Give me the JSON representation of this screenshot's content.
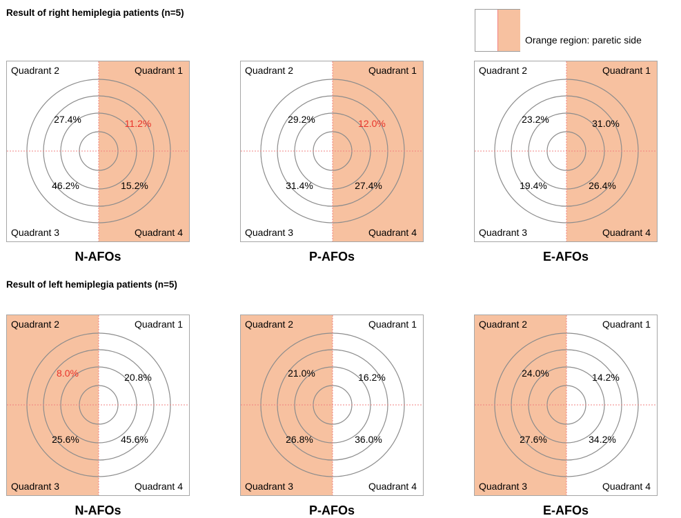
{
  "colors": {
    "paretic": "#f7c1a0",
    "axis_line": "#f08080",
    "circle": "#8c8c8c",
    "highlight_text": "#e8332a",
    "normal_text": "#000000"
  },
  "legend": {
    "text": "Orange region: paretic side"
  },
  "sections": [
    {
      "title": "Result of right hemiplegia patients (n=5)",
      "paretic_side": "right",
      "panels": [
        {
          "name": "N-AFOs",
          "quadrants": {
            "q1": "Quadrant 1",
            "q2": "Quadrant 2",
            "q3": "Quadrant 3",
            "q4": "Quadrant 4"
          },
          "values": {
            "q1": "11.2%",
            "q2": "27.4%",
            "q3": "46.2%",
            "q4": "15.2%"
          },
          "highlight": [
            "q1"
          ]
        },
        {
          "name": "P-AFOs",
          "quadrants": {
            "q1": "Quadrant 1",
            "q2": "Quadrant 2",
            "q3": "Quadrant 3",
            "q4": "Quadrant 4"
          },
          "values": {
            "q1": "12.0%",
            "q2": "29.2%",
            "q3": "31.4%",
            "q4": "27.4%"
          },
          "highlight": [
            "q1"
          ]
        },
        {
          "name": "E-AFOs",
          "quadrants": {
            "q1": "Quadrant 1",
            "q2": "Quadrant 2",
            "q3": "Quadrant 3",
            "q4": "Quadrant 4"
          },
          "values": {
            "q1": "31.0%",
            "q2": "23.2%",
            "q3": "19.4%",
            "q4": "26.4%"
          },
          "highlight": []
        }
      ]
    },
    {
      "title": "Result of left hemiplegia patients (n=5)",
      "paretic_side": "left",
      "panels": [
        {
          "name": "N-AFOs",
          "quadrants": {
            "q1": "Quadrant 1",
            "q2": "Quadrant 2",
            "q3": "Quadrant 3",
            "q4": "Quadrant 4"
          },
          "values": {
            "q1": "20.8%",
            "q2": "8.0%",
            "q3": "25.6%",
            "q4": "45.6%"
          },
          "highlight": [
            "q2"
          ]
        },
        {
          "name": "P-AFOs",
          "quadrants": {
            "q1": "Quadrant 1",
            "q2": "Quadrant 2",
            "q3": "Quadrant 3",
            "q4": "Quadrant 4"
          },
          "values": {
            "q1": "16.2%",
            "q2": "21.0%",
            "q3": "26.8%",
            "q4": "36.0%"
          },
          "highlight": []
        },
        {
          "name": "E-AFOs",
          "quadrants": {
            "q1": "Quadrant 1",
            "q2": "Quadrant 2",
            "q3": "Quadrant 3",
            "q4": "Quadrant 4"
          },
          "values": {
            "q1": "14.2%",
            "q2": "24.0%",
            "q3": "27.6%",
            "q4": "34.2%"
          },
          "highlight": []
        }
      ]
    }
  ]
}
